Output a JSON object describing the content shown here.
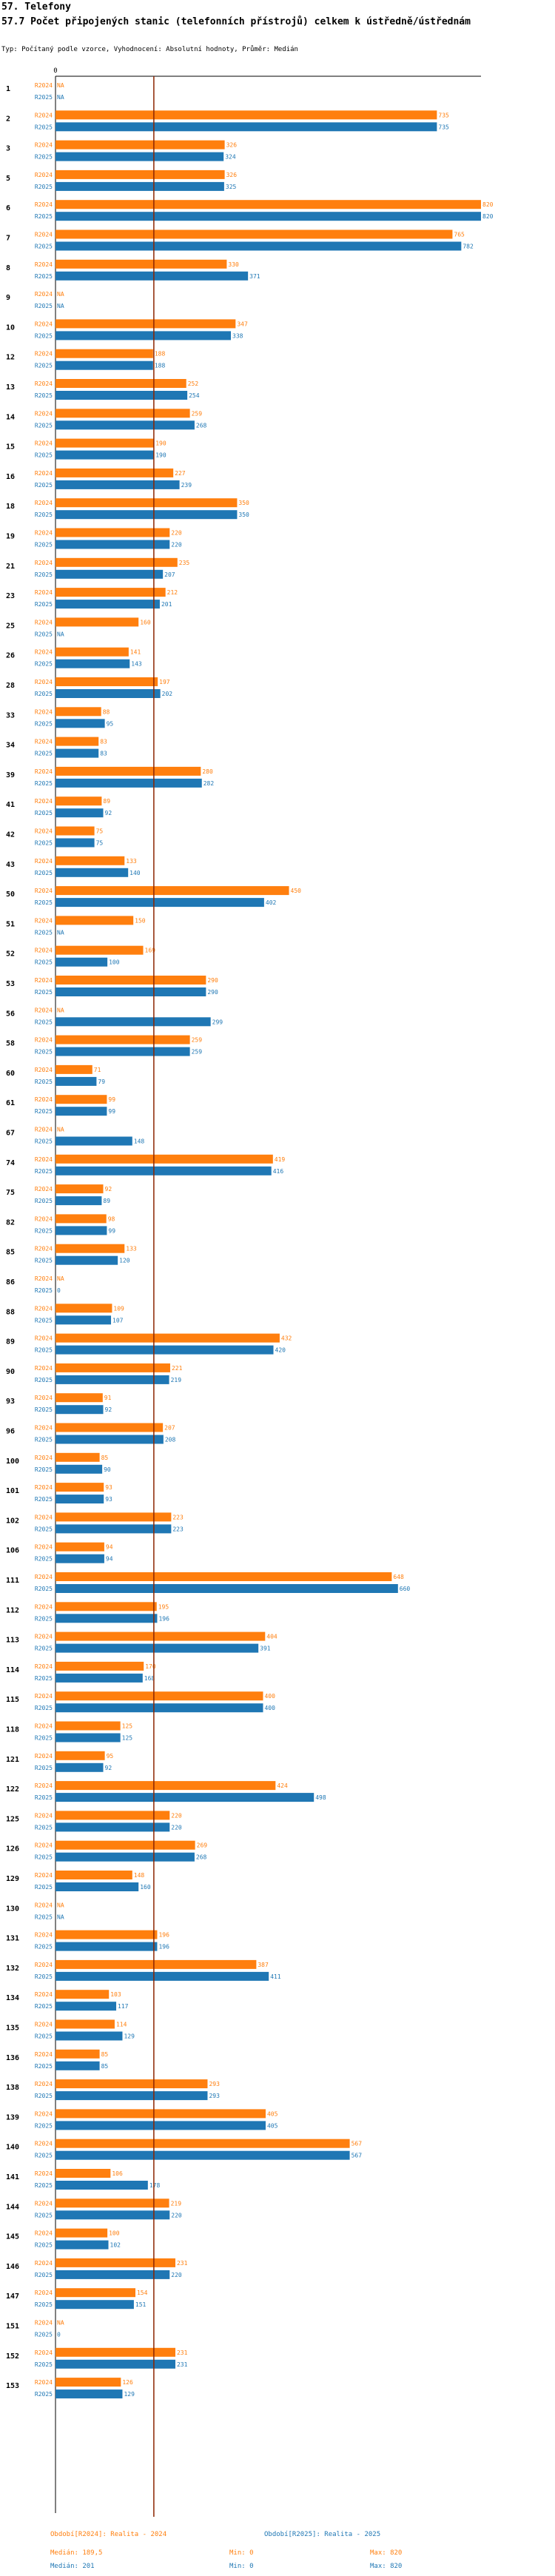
{
  "header": {
    "section": "57. Telefony",
    "title": "57.7 Počet připojených stanic (telefonních přístrojů) celkem k ústředně/ústřednám",
    "note": "Typ: Počítaný podle vzorce, Vyhodnocení: Absolutní hodnoty, Průměr: Medián"
  },
  "colors": {
    "r2024": "#ff7f0e",
    "r2025": "#1f77b4",
    "median_line": "#8b2500"
  },
  "legend": {
    "r2024": {
      "name": "Období[R2024]: Realita - 2024",
      "median": "Medián: 189,5",
      "min": "Min: 0",
      "max": "Max: 820"
    },
    "r2025": {
      "name": "Období[R2025]: Realita - 2025",
      "median": "Medián: 201",
      "min": "Min: 0",
      "max": "Max: 820"
    }
  },
  "chart_data": {
    "type": "bar",
    "orientation": "horizontal",
    "xlim": [
      0,
      820
    ],
    "x_tick_labels": [
      "0"
    ],
    "median_reference": 189.5,
    "na_label": "NA",
    "series_labels": [
      "R2024",
      "R2025"
    ],
    "categories": [
      "1",
      "2",
      "3",
      "5",
      "6",
      "7",
      "8",
      "9",
      "10",
      "12",
      "13",
      "14",
      "15",
      "16",
      "18",
      "19",
      "21",
      "23",
      "25",
      "26",
      "28",
      "33",
      "34",
      "39",
      "41",
      "42",
      "43",
      "50",
      "51",
      "52",
      "53",
      "56",
      "58",
      "60",
      "61",
      "67",
      "74",
      "75",
      "82",
      "85",
      "86",
      "88",
      "89",
      "90",
      "93",
      "96",
      "100",
      "101",
      "102",
      "106",
      "111",
      "112",
      "113",
      "114",
      "115",
      "118",
      "121",
      "122",
      "125",
      "126",
      "129",
      "130",
      "131",
      "132",
      "134",
      "135",
      "136",
      "138",
      "139",
      "140",
      "141",
      "144",
      "145",
      "146",
      "147",
      "151",
      "152",
      "153"
    ],
    "series": [
      {
        "name": "R2024",
        "values": [
          null,
          735,
          326,
          326,
          820,
          765,
          330,
          null,
          347,
          188,
          252,
          259,
          190,
          227,
          350,
          220,
          235,
          212,
          160,
          141,
          197,
          88,
          83,
          280,
          89,
          75,
          133,
          450,
          150,
          169,
          290,
          null,
          259,
          71,
          99,
          null,
          419,
          92,
          98,
          133,
          null,
          109,
          432,
          221,
          91,
          207,
          85,
          93,
          223,
          94,
          648,
          195,
          404,
          170,
          400,
          125,
          95,
          424,
          220,
          269,
          148,
          null,
          196,
          387,
          103,
          114,
          85,
          293,
          405,
          567,
          106,
          219,
          100,
          231,
          154,
          null,
          231,
          126
        ]
      },
      {
        "name": "R2025",
        "values": [
          null,
          735,
          324,
          325,
          820,
          782,
          371,
          null,
          338,
          188,
          254,
          268,
          190,
          239,
          350,
          220,
          207,
          201,
          null,
          143,
          202,
          95,
          83,
          282,
          92,
          75,
          140,
          402,
          null,
          100,
          290,
          299,
          259,
          79,
          99,
          148,
          416,
          89,
          99,
          120,
          0,
          107,
          420,
          219,
          92,
          208,
          90,
          93,
          223,
          94,
          660,
          196,
          391,
          168,
          400,
          125,
          92,
          498,
          220,
          268,
          160,
          null,
          196,
          411,
          117,
          129,
          85,
          293,
          405,
          567,
          178,
          220,
          102,
          220,
          151,
          0,
          231,
          129
        ]
      }
    ]
  }
}
